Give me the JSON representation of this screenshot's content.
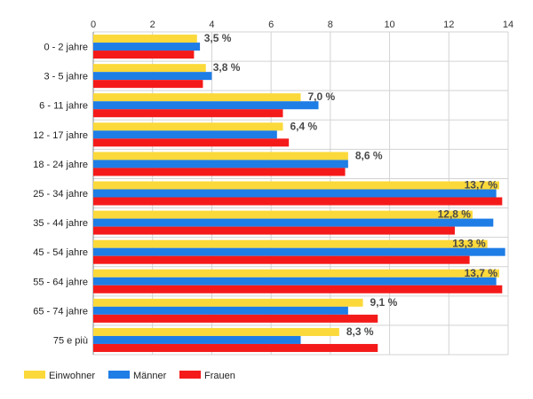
{
  "chart_data": {
    "type": "bar",
    "orientation": "horizontal",
    "categories": [
      "0 - 2 jahre",
      "3 - 5 jahre",
      "6 - 11 jahre",
      "12 - 17 jahre",
      "18 - 24 jahre",
      "25 - 34 jahre",
      "35 - 44 jahre",
      "45 - 54 jahre",
      "55 - 64 jahre",
      "65 - 74 jahre",
      "75 e più"
    ],
    "series": [
      {
        "name": "Einwohner",
        "color": "#fbd93a",
        "values": [
          3.5,
          3.8,
          7.0,
          6.4,
          8.6,
          13.7,
          12.8,
          13.3,
          13.7,
          9.1,
          8.3
        ]
      },
      {
        "name": "Männer",
        "color": "#1f7de6",
        "values": [
          3.6,
          4.0,
          7.6,
          6.2,
          8.6,
          13.6,
          13.5,
          13.9,
          13.6,
          8.6,
          7.0
        ]
      },
      {
        "name": "Frauen",
        "color": "#f51a1a",
        "values": [
          3.4,
          3.7,
          6.4,
          6.6,
          8.5,
          13.8,
          12.2,
          12.7,
          13.8,
          9.6,
          9.6
        ]
      }
    ],
    "data_labels": [
      "3,5 %",
      "3,8 %",
      "7,0 %",
      "6,4 %",
      "8,6 %",
      "13,7 %",
      "12,8 %",
      "13,3 %",
      "13,7 %",
      "9,1 %",
      "8,3 %"
    ],
    "x_ticks": [
      0,
      2,
      4,
      6,
      8,
      10,
      12,
      14
    ],
    "xlim": [
      0,
      14
    ],
    "grid": true,
    "x_axis_position": "top",
    "legend_position": "bottom-left"
  }
}
